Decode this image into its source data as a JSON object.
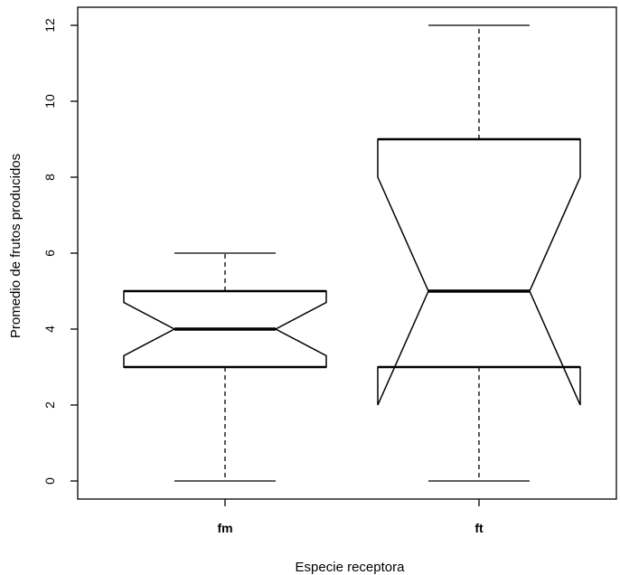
{
  "chart_data": {
    "type": "boxplot",
    "notched": true,
    "xlabel": "Especie receptora",
    "ylabel": "Promedio de frutos producidos",
    "ylim": [
      -0.5,
      12.4
    ],
    "yticks": [
      0,
      2,
      4,
      6,
      8,
      10,
      12
    ],
    "categories": [
      "fm",
      "ft"
    ],
    "boxes": [
      {
        "category": "fm",
        "min": 0,
        "q1": 3,
        "median": 4,
        "q3": 5,
        "max": 6,
        "notch_low": 3.3,
        "notch_high": 4.7
      },
      {
        "category": "ft",
        "min": 0,
        "q1": 3,
        "median": 5,
        "q3": 9,
        "max": 12,
        "notch_low": 2,
        "notch_high": 8
      }
    ]
  }
}
